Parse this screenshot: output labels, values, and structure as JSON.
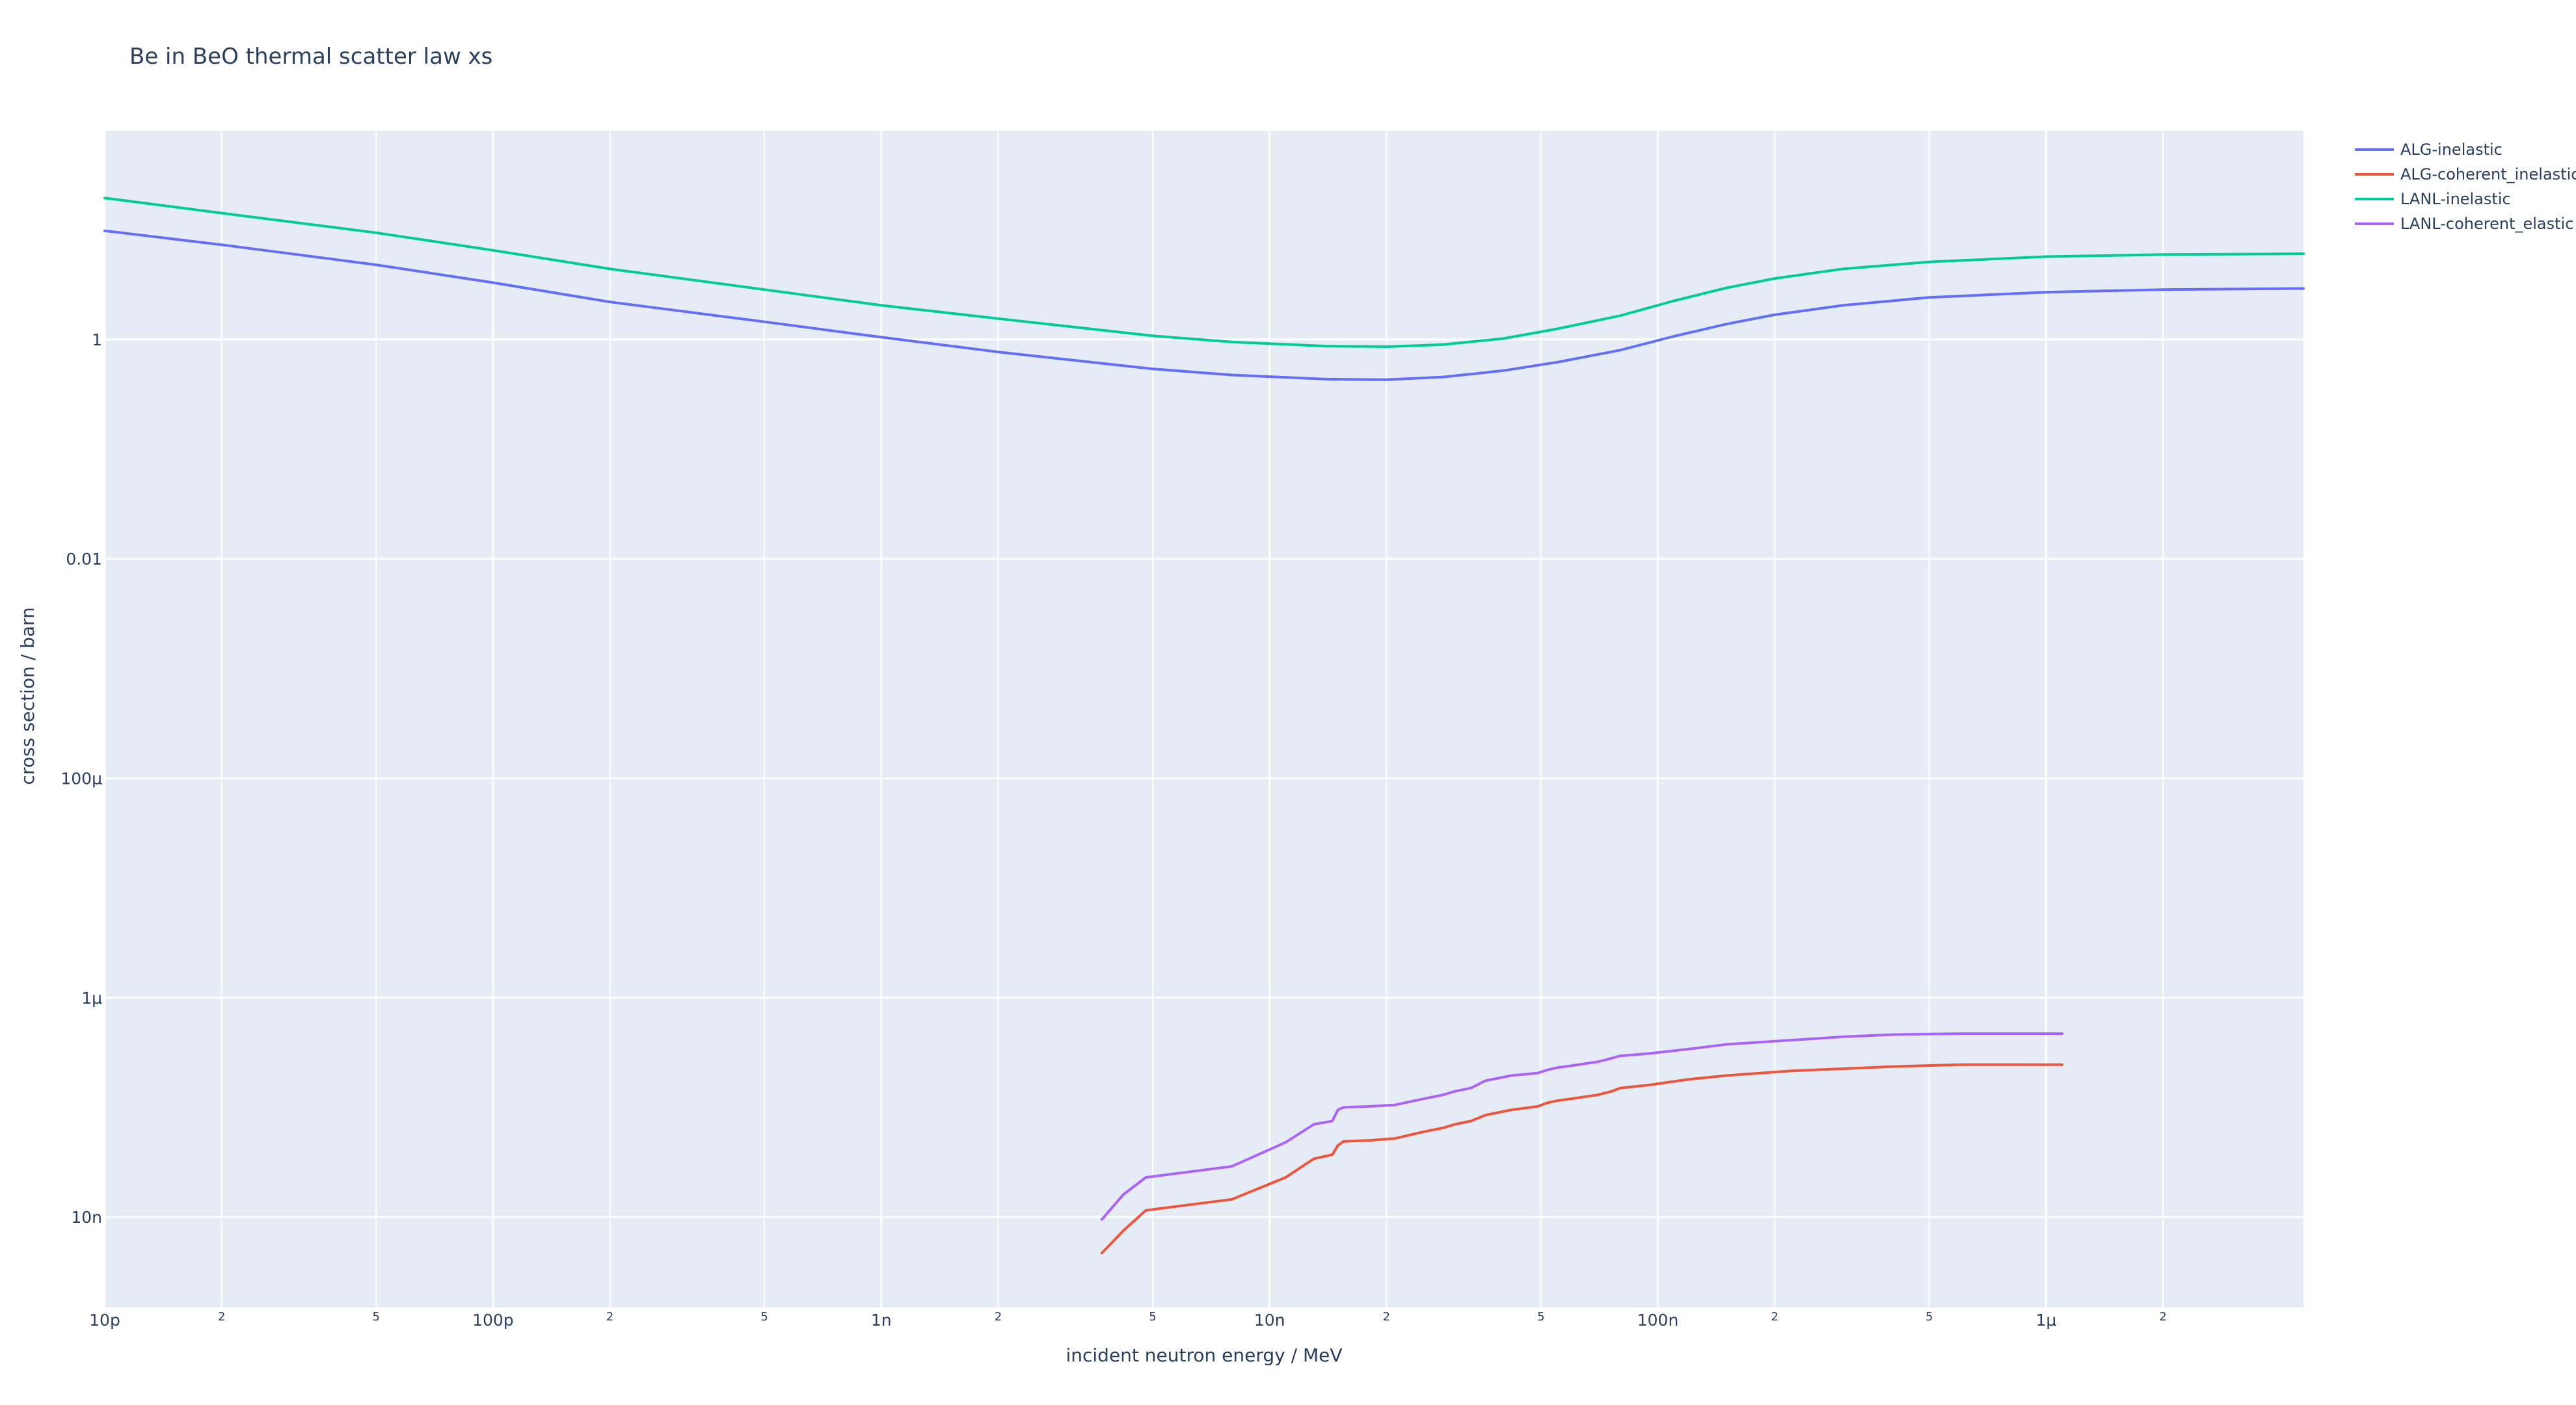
{
  "chart_data": {
    "type": "line",
    "title": "Be in BeO thermal scatter law xs",
    "xlabel": "incident neutron energy / MeV",
    "ylabel": "cross section / barn",
    "xscale": "log",
    "yscale": "log",
    "xlim": [
      1e-11,
      4.6e-06
    ],
    "ylim": [
      1.5e-09,
      80
    ],
    "grid": true,
    "legend_position": "top-right outside",
    "x_ticks": [
      {
        "value": 1e-11,
        "label": "10p",
        "minor": false
      },
      {
        "value": 2e-11,
        "label": "2",
        "minor": true
      },
      {
        "value": 5e-11,
        "label": "5",
        "minor": true
      },
      {
        "value": 1e-10,
        "label": "100p",
        "minor": false
      },
      {
        "value": 2e-10,
        "label": "2",
        "minor": true
      },
      {
        "value": 5e-10,
        "label": "5",
        "minor": true
      },
      {
        "value": 1e-09,
        "label": "1n",
        "minor": false
      },
      {
        "value": 2e-09,
        "label": "2",
        "minor": true
      },
      {
        "value": 5e-09,
        "label": "5",
        "minor": true
      },
      {
        "value": 1e-08,
        "label": "10n",
        "minor": false
      },
      {
        "value": 2e-08,
        "label": "2",
        "minor": true
      },
      {
        "value": 5e-08,
        "label": "5",
        "minor": true
      },
      {
        "value": 1e-07,
        "label": "100n",
        "minor": false
      },
      {
        "value": 2e-07,
        "label": "2",
        "minor": true
      },
      {
        "value": 5e-07,
        "label": "5",
        "minor": true
      },
      {
        "value": 1e-06,
        "label": "1μ",
        "minor": false
      },
      {
        "value": 2e-06,
        "label": "2",
        "minor": true
      }
    ],
    "y_ticks": [
      {
        "value": 1,
        "label": "1"
      },
      {
        "value": 0.01,
        "label": "0.01"
      },
      {
        "value": 0.0001,
        "label": "100μ"
      },
      {
        "value": 1e-06,
        "label": "1μ"
      },
      {
        "value": 1e-08,
        "label": "10n"
      }
    ],
    "colors": {
      "plot_bg": "#E5ECF6",
      "grid": "#FFFFFF",
      "text": "#2a3f5f"
    },
    "series": [
      {
        "name": "ALG-inelastic",
        "color": "#636EFA",
        "x": [
          1e-11,
          2e-11,
          5e-11,
          1e-10,
          2e-10,
          5e-10,
          1e-09,
          2e-09,
          5e-09,
          8e-09,
          1.4e-08,
          2e-08,
          2.8e-08,
          4e-08,
          5.5e-08,
          8e-08,
          1.1e-07,
          1.5e-07,
          2e-07,
          3e-07,
          5e-07,
          1e-06,
          2e-06,
          4.6e-06
        ],
        "y": [
          9.8,
          7.3,
          4.8,
          3.3,
          2.2,
          1.45,
          1.05,
          0.77,
          0.54,
          0.475,
          0.435,
          0.43,
          0.455,
          0.52,
          0.62,
          0.8,
          1.07,
          1.38,
          1.68,
          2.05,
          2.42,
          2.7,
          2.85,
          2.92
        ]
      },
      {
        "name": "ALG-coherent_inelastic",
        "color": "#EF553B",
        "x": [
          3.7e-09,
          4.2e-09,
          4.8e-09,
          8e-09,
          1.1e-08,
          1.3e-08,
          1.45e-08,
          1.5e-08,
          1.55e-08,
          1.8e-08,
          2.1e-08,
          2.5e-08,
          2.8e-08,
          3e-08,
          3.3e-08,
          3.6e-08,
          4.2e-08,
          4.9e-08,
          5.2e-08,
          5.5e-08,
          6e-08,
          7e-08,
          7.6e-08,
          8e-08,
          9.5e-08,
          1.2e-07,
          1.5e-07,
          2.2e-07,
          3e-07,
          4e-07,
          6e-07,
          1.1e-06
        ],
        "y": [
          4.7e-09,
          7.5e-09,
          1.15e-08,
          1.45e-08,
          2.3e-08,
          3.4e-08,
          3.7e-08,
          4.5e-08,
          4.9e-08,
          5e-08,
          5.2e-08,
          6e-08,
          6.5e-08,
          7e-08,
          7.5e-08,
          8.5e-08,
          9.5e-08,
          1.02e-07,
          1.1e-07,
          1.15e-07,
          1.2e-07,
          1.3e-07,
          1.4e-07,
          1.5e-07,
          1.6e-07,
          1.8e-07,
          1.95e-07,
          2.15e-07,
          2.25e-07,
          2.35e-07,
          2.45e-07,
          2.45e-07
        ]
      },
      {
        "name": "LANL-inelastic",
        "color": "#00CC96",
        "x": [
          1e-11,
          2e-11,
          5e-11,
          1e-10,
          2e-10,
          5e-10,
          1e-09,
          2e-09,
          5e-09,
          8e-09,
          1.4e-08,
          2e-08,
          2.8e-08,
          4e-08,
          5.5e-08,
          8e-08,
          1.1e-07,
          1.5e-07,
          2e-07,
          3e-07,
          5e-07,
          1e-06,
          2e-06,
          4.6e-06
        ],
        "y": [
          19.5,
          14.2,
          9.4,
          6.5,
          4.4,
          2.85,
          2.05,
          1.55,
          1.08,
          0.95,
          0.87,
          0.86,
          0.9,
          1.02,
          1.25,
          1.65,
          2.25,
          2.95,
          3.6,
          4.4,
          5.1,
          5.7,
          5.95,
          6.05
        ]
      },
      {
        "name": "LANL-coherent_elastic",
        "color": "#AB63FA",
        "x": [
          3.7e-09,
          4.2e-09,
          4.8e-09,
          8e-09,
          1.1e-08,
          1.3e-08,
          1.45e-08,
          1.5e-08,
          1.55e-08,
          1.8e-08,
          2.1e-08,
          2.5e-08,
          2.8e-08,
          3e-08,
          3.3e-08,
          3.6e-08,
          4.2e-08,
          4.9e-08,
          5.2e-08,
          5.5e-08,
          6e-08,
          7e-08,
          7.6e-08,
          8e-08,
          9.5e-08,
          1.2e-07,
          1.5e-07,
          2.2e-07,
          3e-07,
          4e-07,
          6e-07,
          1.1e-06
        ],
        "y": [
          9.5e-09,
          1.6e-08,
          2.3e-08,
          2.9e-08,
          4.8e-08,
          7e-08,
          7.5e-08,
          9.5e-08,
          1e-07,
          1.02e-07,
          1.05e-07,
          1.2e-07,
          1.3e-07,
          1.4e-07,
          1.5e-07,
          1.75e-07,
          1.95e-07,
          2.05e-07,
          2.2e-07,
          2.3e-07,
          2.4e-07,
          2.6e-07,
          2.8e-07,
          2.95e-07,
          3.1e-07,
          3.4e-07,
          3.75e-07,
          4.1e-07,
          4.4e-07,
          4.6e-07,
          4.7e-07,
          4.7e-07
        ]
      }
    ]
  }
}
